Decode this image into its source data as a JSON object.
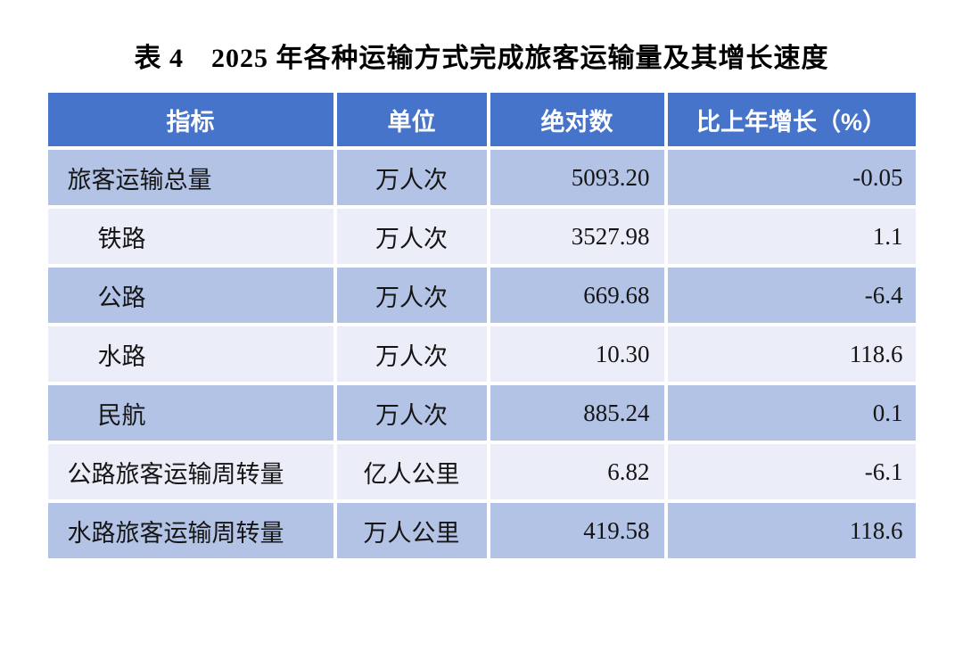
{
  "title": "表 4　2025 年各种运输方式完成旅客运输量及其增长速度",
  "colors": {
    "header-bg": "#4674CB",
    "row-odd": "#B3C3E6",
    "row-even": "#EBEEF8",
    "header-text": "#FFFFFF",
    "body-text": "#151515",
    "page-bg": "#FFFFFF"
  },
  "table": {
    "headers": {
      "indicator": "指标",
      "unit": "单位",
      "absolute": "绝对数",
      "growth": "比上年增长（%）"
    },
    "rows": [
      {
        "indicator": "旅客运输总量",
        "unit": "万人次",
        "absolute": "5093.20",
        "growth": "-0.05"
      },
      {
        "indicator": "铁路",
        "unit": "万人次",
        "absolute": "3527.98",
        "growth": "1.1"
      },
      {
        "indicator": "公路",
        "unit": "万人次",
        "absolute": "669.68",
        "growth": "-6.4"
      },
      {
        "indicator": "水路",
        "unit": "万人次",
        "absolute": "10.30",
        "growth": "118.6"
      },
      {
        "indicator": "民航",
        "unit": "万人次",
        "absolute": "885.24",
        "growth": "0.1"
      },
      {
        "indicator": "公路旅客运输周转量",
        "unit": "亿人公里",
        "absolute": "6.82",
        "growth": "-6.1"
      },
      {
        "indicator": "水路旅客运输周转量",
        "unit": "万人公里",
        "absolute": "419.58",
        "growth": "118.6"
      }
    ]
  },
  "chart_data": {
    "type": "table",
    "title": "表 4　2025 年各种运输方式完成旅客运输量及其增长速度",
    "columns": [
      "指标",
      "单位",
      "绝对数",
      "比上年增长（%）"
    ],
    "rows": [
      [
        "旅客运输总量",
        "万人次",
        5093.2,
        -0.05
      ],
      [
        "铁路",
        "万人次",
        3527.98,
        1.1
      ],
      [
        "公路",
        "万人次",
        669.68,
        -6.4
      ],
      [
        "水路",
        "万人次",
        10.3,
        118.6
      ],
      [
        "民航",
        "万人次",
        885.24,
        0.1
      ],
      [
        "公路旅客运输周转量",
        "亿人公里",
        6.82,
        -6.1
      ],
      [
        "水路旅客运输周转量",
        "万人公里",
        419.58,
        118.6
      ]
    ]
  }
}
